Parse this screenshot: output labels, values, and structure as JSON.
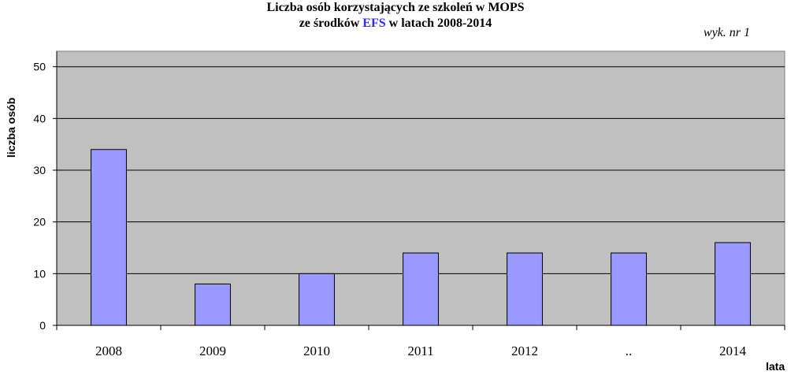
{
  "chart_data": {
    "type": "bar",
    "title_line1": "Liczba osób korzystających ze szkoleń w MOPS",
    "title_line2_prefix": "ze środków ",
    "title_line2_highlight": "EFS",
    "title_line2_suffix": " w latach 2008-2014",
    "note": "wyk. nr 1",
    "xlabel": "lata",
    "ylabel": "liczba osób",
    "categories": [
      "2008",
      "2009",
      "2010",
      "2011",
      "2012",
      "..",
      "2014"
    ],
    "values": [
      34,
      8,
      10,
      14,
      14,
      14,
      16
    ],
    "yticks": [
      0,
      10,
      20,
      30,
      40,
      50
    ],
    "ylim": [
      0,
      53
    ],
    "colors": {
      "plot_bg": "#c0c0c0",
      "bar": "#9999ff",
      "bar_stroke": "#000000",
      "grid": "#000000",
      "highlight": "#2d2df0"
    },
    "grid": true,
    "legend": "none"
  }
}
